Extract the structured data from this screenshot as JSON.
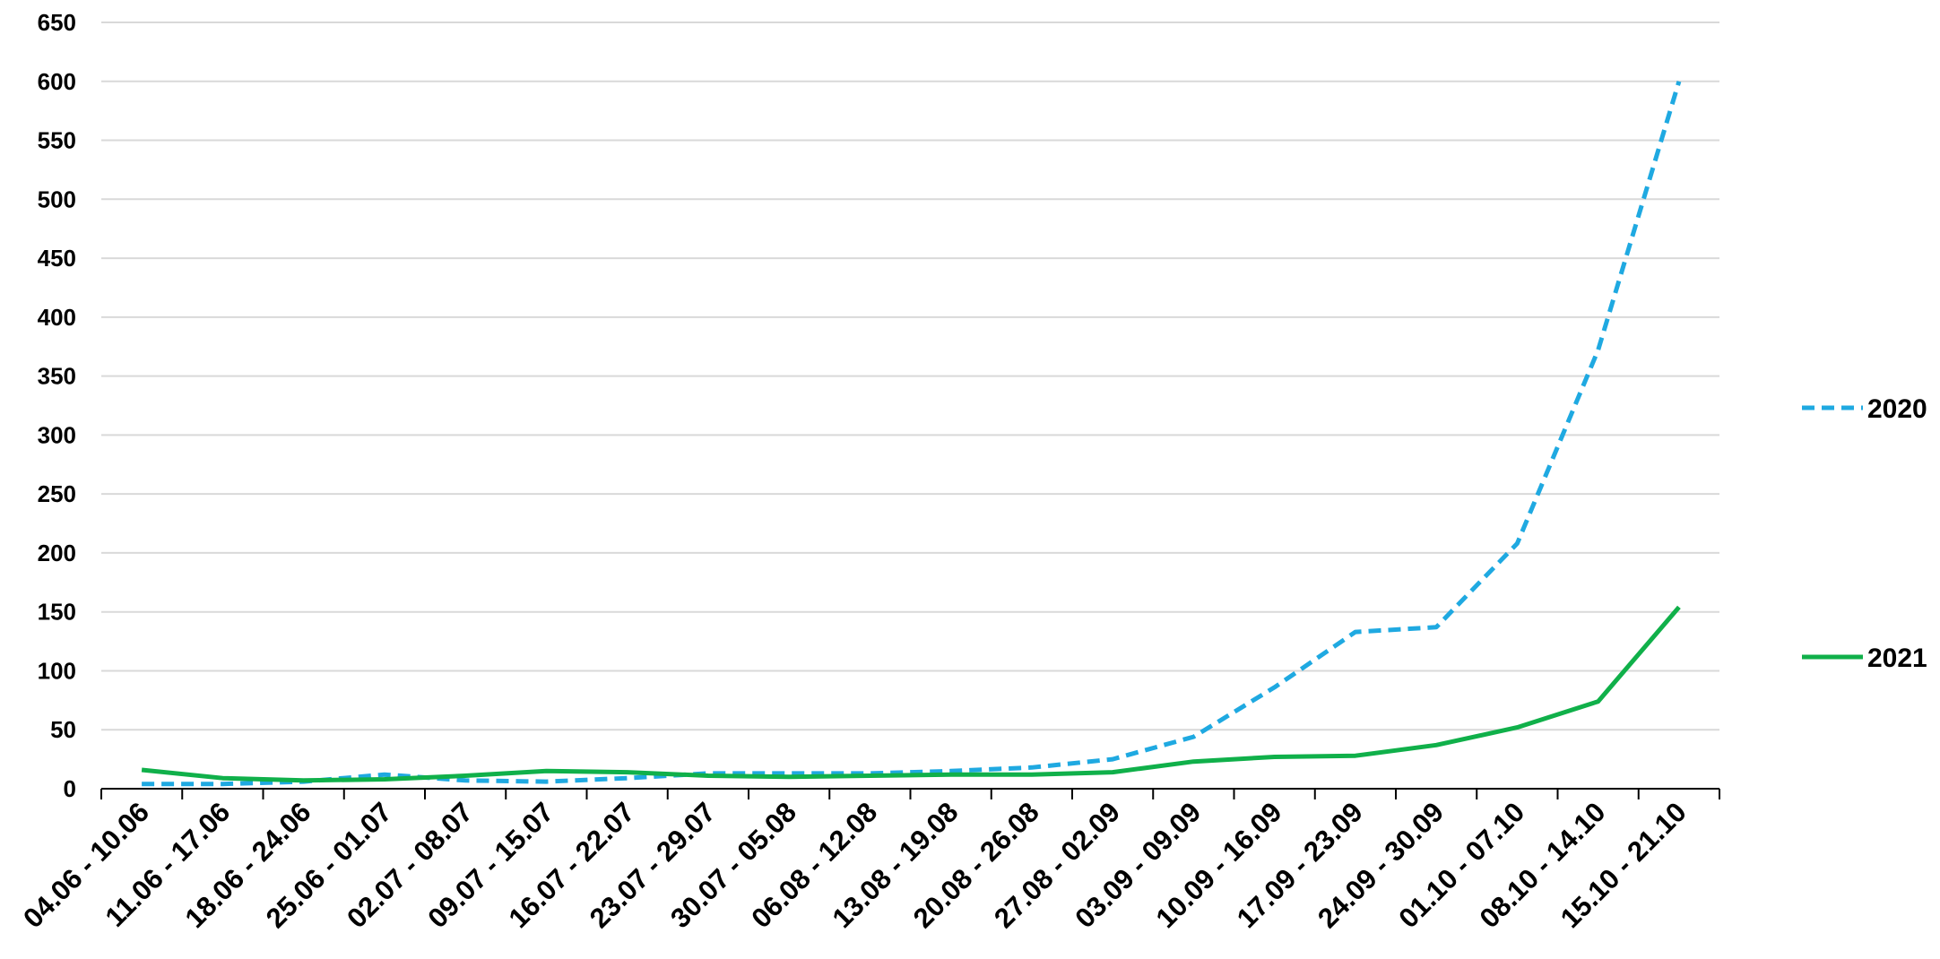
{
  "chart_data": {
    "type": "line",
    "categories": [
      "04.06 - 10.06",
      "11.06 - 17.06",
      "18.06 - 24.06",
      "25.06 - 01.07",
      "02.07 - 08.07",
      "09.07 - 15.07",
      "16.07 - 22.07",
      "23.07 - 29.07",
      "30.07 - 05.08",
      "06.08 - 12.08",
      "13.08 - 19.08",
      "20.08 - 26.08",
      "27.08 - 02.09",
      "03.09 - 09.09",
      "10.09 - 16.09",
      "17.09 - 23.09",
      "24.09 - 30.09",
      "01.10 - 07.10",
      "08.10 - 14.10",
      "15.10 - 21.10"
    ],
    "series": [
      {
        "name": "2020",
        "color": "#1fa9e1",
        "dash": "dashed",
        "values": [
          4,
          4,
          6,
          12,
          7,
          6,
          9,
          13,
          13,
          13,
          15,
          18,
          25,
          44,
          86,
          133,
          137,
          208,
          372,
          600
        ]
      },
      {
        "name": "2021",
        "color": "#10b04a",
        "dash": "solid",
        "values": [
          16,
          9,
          7,
          8,
          11,
          15,
          14,
          11,
          10,
          11,
          12,
          12,
          14,
          23,
          27,
          28,
          37,
          52,
          74,
          154
        ]
      }
    ],
    "ylim": [
      0,
      650
    ],
    "yticks": [
      0,
      50,
      100,
      150,
      200,
      250,
      300,
      350,
      400,
      450,
      500,
      550,
      600,
      650
    ],
    "grid": "horizontal",
    "legend_position": "right",
    "title": "",
    "xlabel": "",
    "ylabel": ""
  }
}
